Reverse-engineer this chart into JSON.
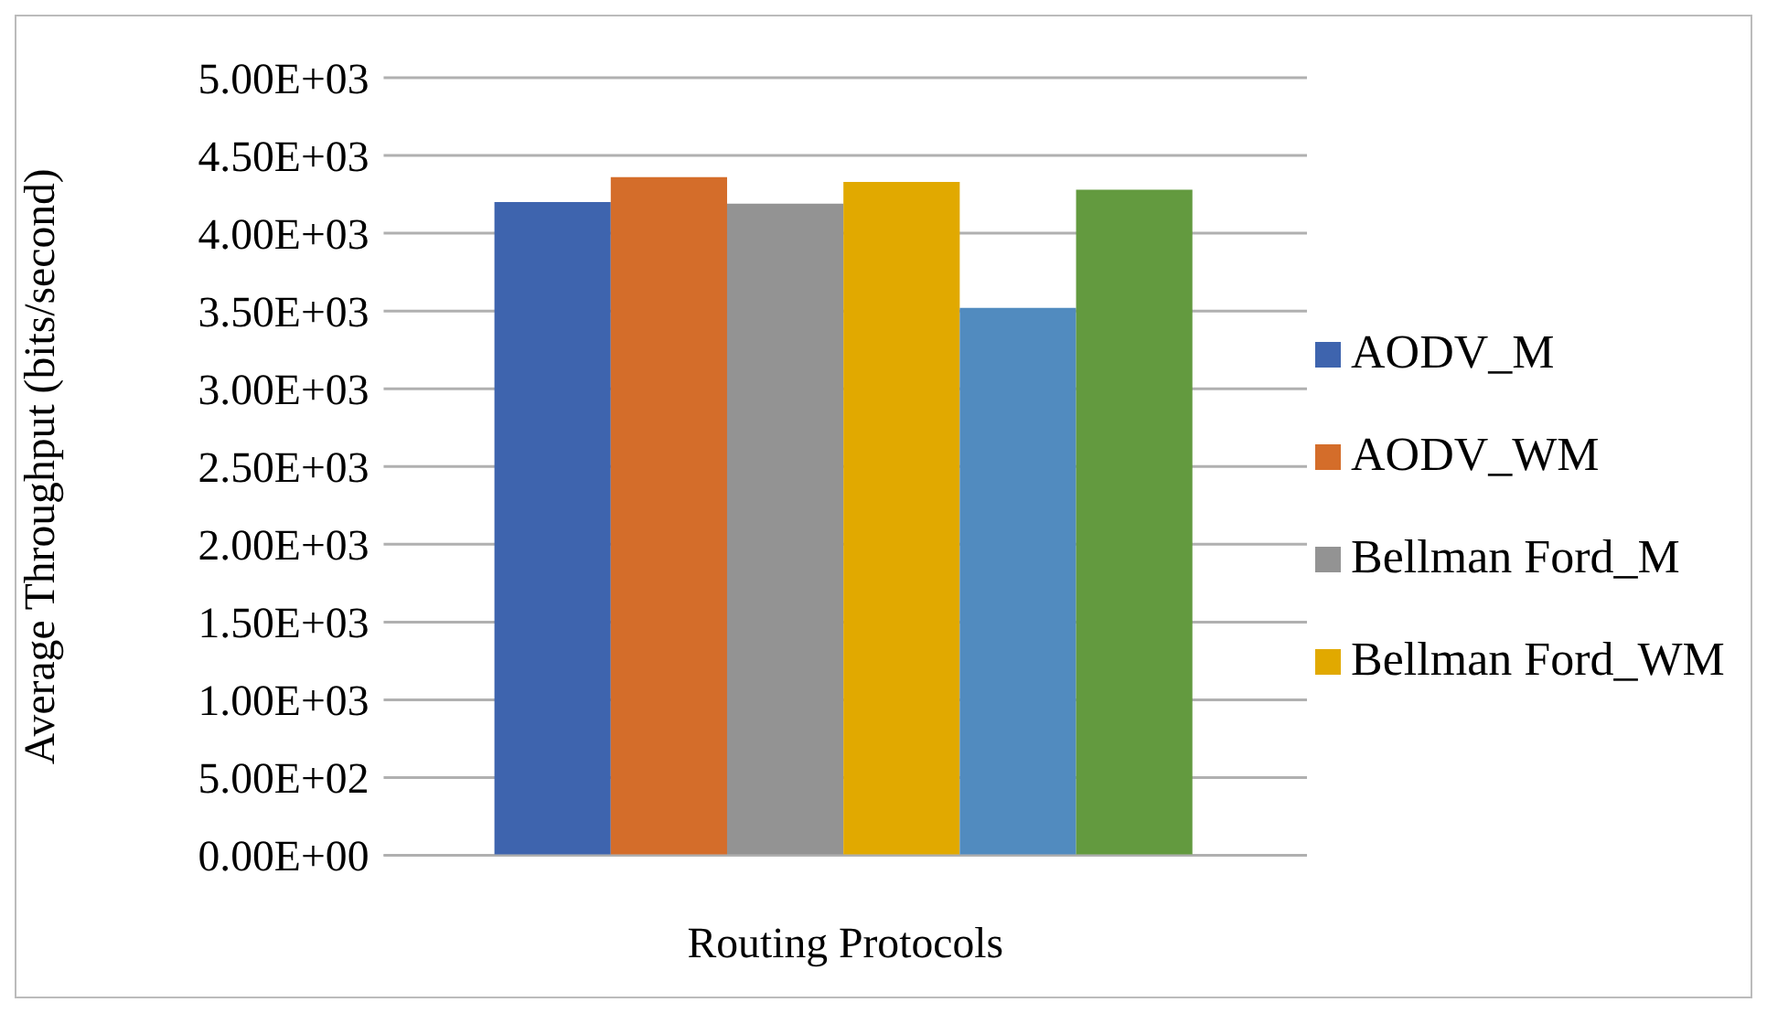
{
  "chart_data": {
    "type": "bar",
    "xlabel": "Routing Protocols",
    "ylabel": "Average Throughput (bits/second)",
    "categories": [
      null
    ],
    "series": [
      {
        "name": "AODV_M",
        "color": "#3e64ae",
        "values": [
          4200
        ]
      },
      {
        "name": "AODV_WM",
        "color": "#d46d2a",
        "values": [
          4360
        ]
      },
      {
        "name": "Bellman Ford_M",
        "color": "#939393",
        "values": [
          4190
        ]
      },
      {
        "name": "Bellman Ford_WM",
        "color": "#e1a900",
        "values": [
          4330
        ]
      },
      {
        "color": "#518bbf",
        "values": [
          3520
        ]
      },
      {
        "color": "#639a3f",
        "values": [
          4280
        ]
      }
    ],
    "ylim": [
      0,
      5000
    ],
    "yticks": [
      {
        "value": 0,
        "label": "0.00E+00"
      },
      {
        "value": 500,
        "label": "5.00E+02"
      },
      {
        "value": 1000,
        "label": "1.00E+03"
      },
      {
        "value": 1500,
        "label": "1.50E+03"
      },
      {
        "value": 2000,
        "label": "2.00E+03"
      },
      {
        "value": 2500,
        "label": "2.50E+03"
      },
      {
        "value": 3000,
        "label": "3.00E+03"
      },
      {
        "value": 3500,
        "label": "3.50E+03"
      },
      {
        "value": 4000,
        "label": "4.00E+03"
      },
      {
        "value": 4500,
        "label": "4.50E+03"
      },
      {
        "value": 5000,
        "label": "5.00E+03"
      }
    ],
    "grid": "y",
    "legend": "right"
  }
}
